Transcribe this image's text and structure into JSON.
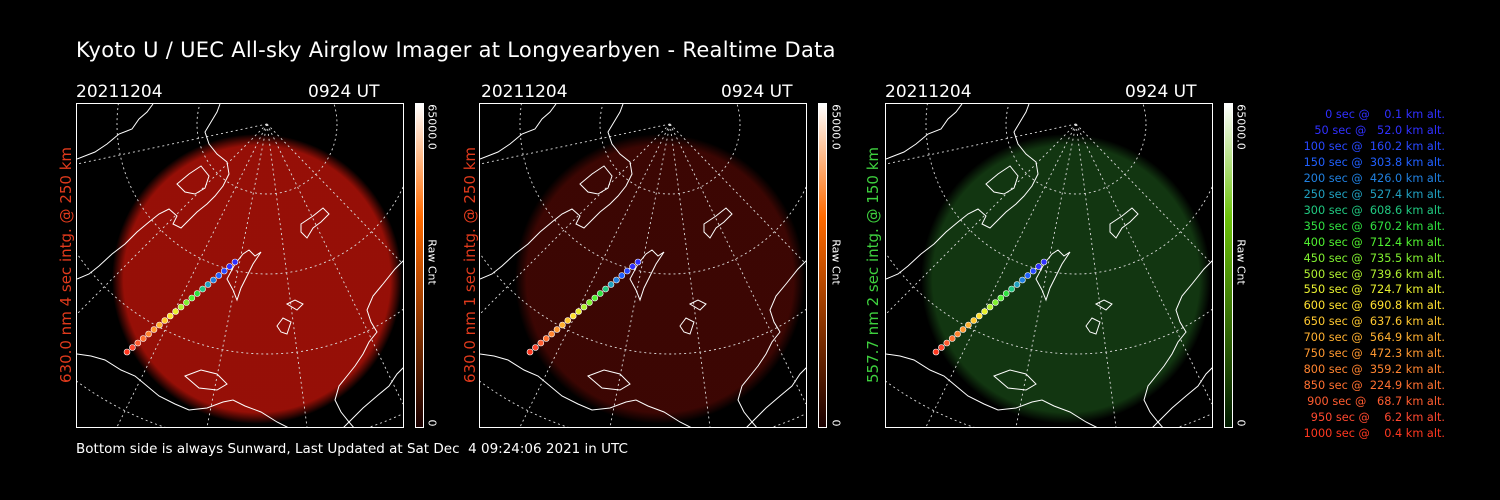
{
  "header": {
    "title": "Kyoto U / UEC All-sky Airglow Imager at Longyearbyen - Realtime Data"
  },
  "panels": [
    {
      "date": "20211204",
      "time": "0924 UT",
      "ylabel": "630.0 nm 4 sec intg. @ 250 km",
      "ylabel_color": "#e03a1c",
      "glow_color": "#b01208",
      "glow_opacity": 0.85,
      "colorbar_top": "#ffffff",
      "colorbar_mid": "#ff6a00",
      "colorbar_bottom": "#1a0000",
      "colorbar_max": "65000.0",
      "colorbar_min": "0",
      "colorbar_label": "Raw Cnt"
    },
    {
      "date": "20211204",
      "time": "0924 UT",
      "ylabel": "630.0 nm 1 sec intg. @ 250 km",
      "ylabel_color": "#e03a1c",
      "glow_color": "#6e0c06",
      "glow_opacity": 0.55,
      "colorbar_top": "#ffffff",
      "colorbar_mid": "#ff6a00",
      "colorbar_bottom": "#1a0000",
      "colorbar_max": "65000.0",
      "colorbar_min": "0",
      "colorbar_label": "Raw Cnt"
    },
    {
      "date": "20211204",
      "time": "0924 UT",
      "ylabel": "557.7 nm 2 sec intg. @ 150 km",
      "ylabel_color": "#3ed03e",
      "glow_color": "#1e5a1c",
      "glow_opacity": 0.6,
      "colorbar_top": "#ffffff",
      "colorbar_mid": "#6cc20a",
      "colorbar_bottom": "#001a00",
      "colorbar_max": "65000.0",
      "colorbar_min": "0",
      "colorbar_label": "Raw Cnt"
    }
  ],
  "legend": [
    {
      "text": "   0 sec @    0.1 km alt.",
      "color": "#3030ff"
    },
    {
      "text": "  50 sec @   52.0 km alt.",
      "color": "#3030ff"
    },
    {
      "text": " 100 sec @  160.2 km alt.",
      "color": "#2848ff"
    },
    {
      "text": " 150 sec @  303.8 km alt.",
      "color": "#2060ff"
    },
    {
      "text": " 200 sec @  426.0 km alt.",
      "color": "#2080e0"
    },
    {
      "text": " 250 sec @  527.4 km alt.",
      "color": "#20a0c0"
    },
    {
      "text": " 300 sec @  608.6 km alt.",
      "color": "#20c880"
    },
    {
      "text": " 350 sec @  670.2 km alt.",
      "color": "#30e040"
    },
    {
      "text": " 400 sec @  712.4 km alt.",
      "color": "#50f030"
    },
    {
      "text": " 450 sec @  735.5 km alt.",
      "color": "#80f030"
    },
    {
      "text": " 500 sec @  739.6 km alt.",
      "color": "#b0f030"
    },
    {
      "text": " 550 sec @  724.7 km alt.",
      "color": "#e8f030"
    },
    {
      "text": " 600 sec @  690.8 km alt.",
      "color": "#ffe030"
    },
    {
      "text": " 650 sec @  637.6 km alt.",
      "color": "#ffc830"
    },
    {
      "text": " 700 sec @  564.9 km alt.",
      "color": "#ffb030"
    },
    {
      "text": " 750 sec @  472.3 km alt.",
      "color": "#ff9830"
    },
    {
      "text": " 800 sec @  359.2 km alt.",
      "color": "#ff8430"
    },
    {
      "text": " 850 sec @  224.9 km alt.",
      "color": "#ff7030"
    },
    {
      "text": " 900 sec @   68.7 km alt.",
      "color": "#ff5c30"
    },
    {
      "text": " 950 sec @    6.2 km alt.",
      "color": "#ff4830"
    },
    {
      "text": "1000 sec @    0.4 km alt.",
      "color": "#ff3820"
    }
  ],
  "footer": {
    "text": "Bottom side is always Sunward, Last Updated at Sat Dec  4 09:24:06 2021 in UTC"
  }
}
